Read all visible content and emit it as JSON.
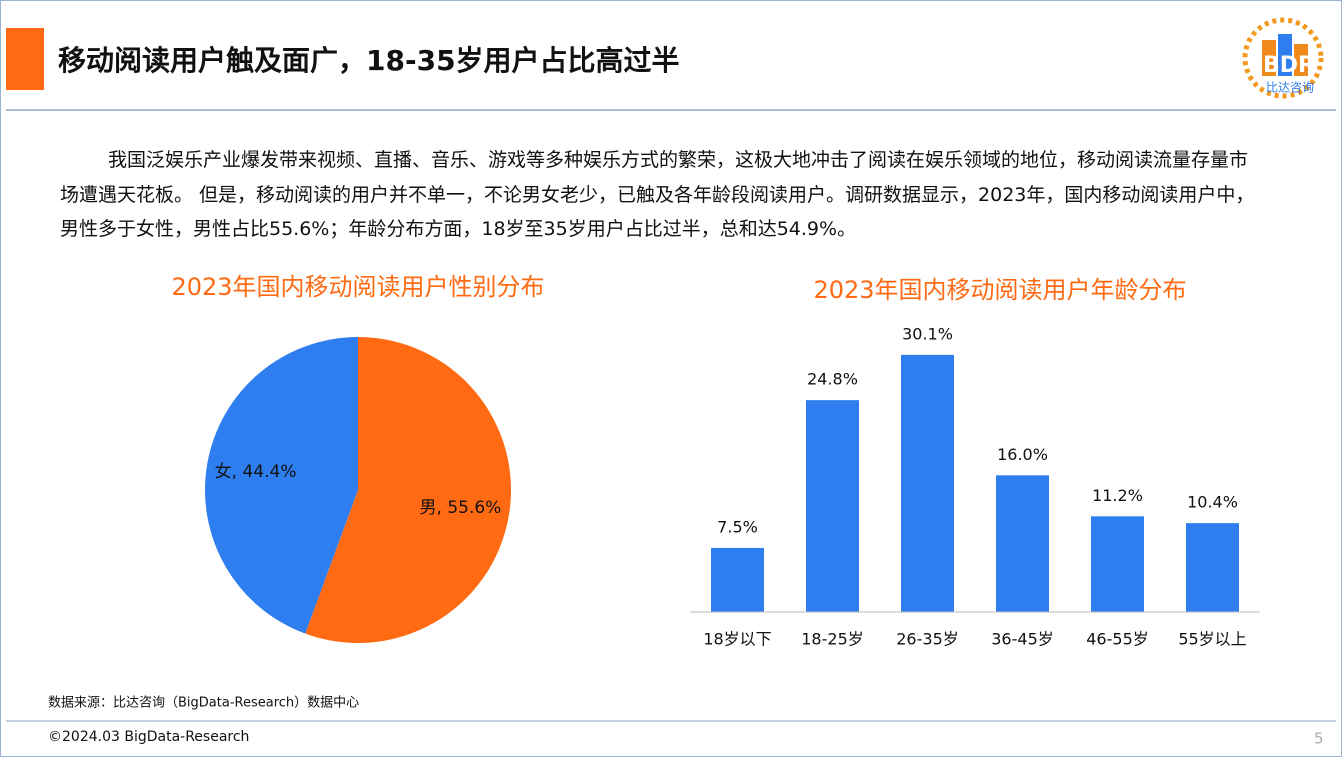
{
  "header": {
    "title": "移动阅读用户触及面广，18-35岁用户占比高过半",
    "logo": "BDR",
    "logo_sub": "比达咨询"
  },
  "paragraph": "我国泛娱乐产业爆发带来视频、直播、音乐、游戏等多种娱乐方式的繁荣，这极大地冲击了阅读在娱乐领域的地位，移动阅读流量存量市场遭遇天花板。 但是，移动阅读的用户并不单一，不论男女老少，已触及各年龄段阅读用户。调研数据显示，2023年，国内移动阅读用户中，男性多于女性，男性占比55.6%；年龄分布方面，18岁至35岁用户占比过半，总和达54.9%。",
  "chart_data": [
    {
      "type": "pie",
      "title": "2023年国内移动阅读用户性别分布",
      "values": [
        55.6,
        44.4
      ],
      "value_labels": [
        "男, 55.6%",
        "女, 44.4%"
      ],
      "colors": [
        "#ff6a13",
        "#2f7ef0"
      ]
    },
    {
      "type": "bar",
      "title": "2023年国内移动阅读用户年龄分布",
      "categories": [
        "18岁以下",
        "18-25岁",
        "26-35岁",
        "36-45岁",
        "46-55岁",
        "55岁以上"
      ],
      "values": [
        7.5,
        24.8,
        30.1,
        16.0,
        11.2,
        10.4
      ],
      "value_labels": [
        "7.5%",
        "24.8%",
        "30.1%",
        "16.0%",
        "11.2%",
        "10.4%"
      ],
      "color": "#2f7ef0",
      "ylim": [
        0,
        35
      ]
    }
  ],
  "footer": {
    "source": "数据来源：比达咨询（BigData-Research）数据中心",
    "copyright": "©2024.03 BigData-Research",
    "page": "5"
  }
}
